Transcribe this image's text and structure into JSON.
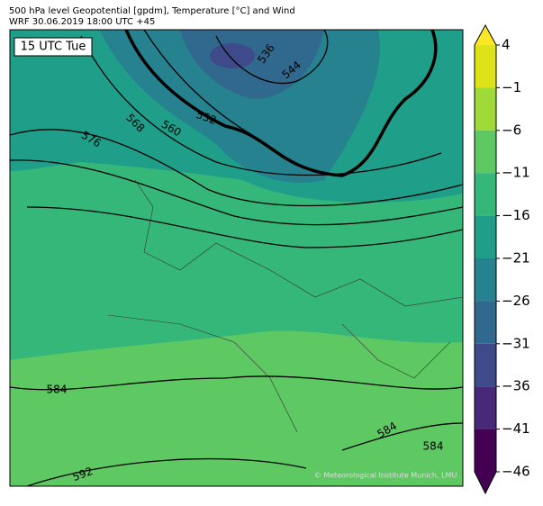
{
  "header": {
    "title": "500 hPa level Geopotential [gpdm], Temperature [°C] and Wind",
    "subtitle": "WRF 30.06.2019 18:00 UTC +45"
  },
  "map": {
    "time_label": "15 UTC Tue",
    "contour_labels": [
      536,
      544,
      552,
      560,
      568,
      576,
      584,
      584,
      584,
      592
    ],
    "credit": "© Meteorological Institute Munich, LMU"
  },
  "colorbar": {
    "ticks": [
      {
        "value": 4,
        "label": "4"
      },
      {
        "value": -1,
        "label": "−1"
      },
      {
        "value": -6,
        "label": "−6"
      },
      {
        "value": -11,
        "label": "−11"
      },
      {
        "value": -16,
        "label": "−16"
      },
      {
        "value": -21,
        "label": "−21"
      },
      {
        "value": -26,
        "label": "−26"
      },
      {
        "value": -31,
        "label": "−31"
      },
      {
        "value": -36,
        "label": "−36"
      },
      {
        "value": -41,
        "label": "−41"
      },
      {
        "value": -46,
        "label": "−46"
      }
    ],
    "colors": [
      "#dde318",
      "#a0da39",
      "#5ec962",
      "#35b779",
      "#1f9e89",
      "#26828e",
      "#31688e",
      "#3e4a89",
      "#482878",
      "#440154"
    ],
    "extend_colors": [
      "#fde725",
      "#440154"
    ]
  }
}
